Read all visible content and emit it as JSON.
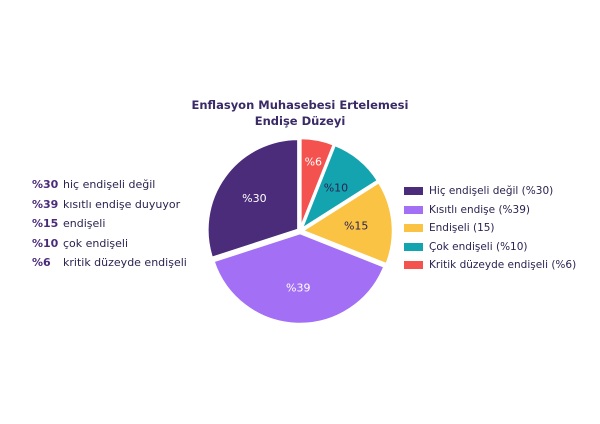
{
  "chart_data": {
    "type": "pie",
    "title": "Enflasyon Muhasebesi Ertelemesi Endişe Düzeyi",
    "start": "top",
    "direction": "clockwise",
    "slices": [
      {
        "label": "Kritik düzeyde endişeli (%6)",
        "value": 6,
        "data_label": "%6",
        "color": "#f4524f",
        "label_color": "#ffffff"
      },
      {
        "label": "Çok endişeli (%10)",
        "value": 10,
        "data_label": "%10",
        "color": "#14a4b0",
        "label_color": "#2b2350"
      },
      {
        "label": "Endişeli (15)",
        "value": 15,
        "data_label": "%15",
        "color": "#fbc343",
        "label_color": "#2b2350"
      },
      {
        "label": "Kısıtlı endişe (%39)",
        "value": 39,
        "data_label": "%39",
        "color": "#a36ff5",
        "label_color": "#ffffff"
      },
      {
        "label": "Hiç endişeli değil (%30)",
        "value": 30,
        "data_label": "%30",
        "color": "#4a2c7a",
        "label_color": "#ffffff"
      }
    ],
    "legend_order": [
      4,
      3,
      2,
      1,
      0
    ],
    "legend_placement": "right"
  },
  "notes": [
    {
      "pct": "%30",
      "text": "hiç endişeli değil"
    },
    {
      "pct": "%39",
      "text": "kısıtlı endişe duyuyor"
    },
    {
      "pct": "%15",
      "text": "endişeli"
    },
    {
      "pct": "%10",
      "text": "çok endişeli"
    },
    {
      "pct": "%6",
      "text": "kritik düzeyde endişeli"
    }
  ]
}
